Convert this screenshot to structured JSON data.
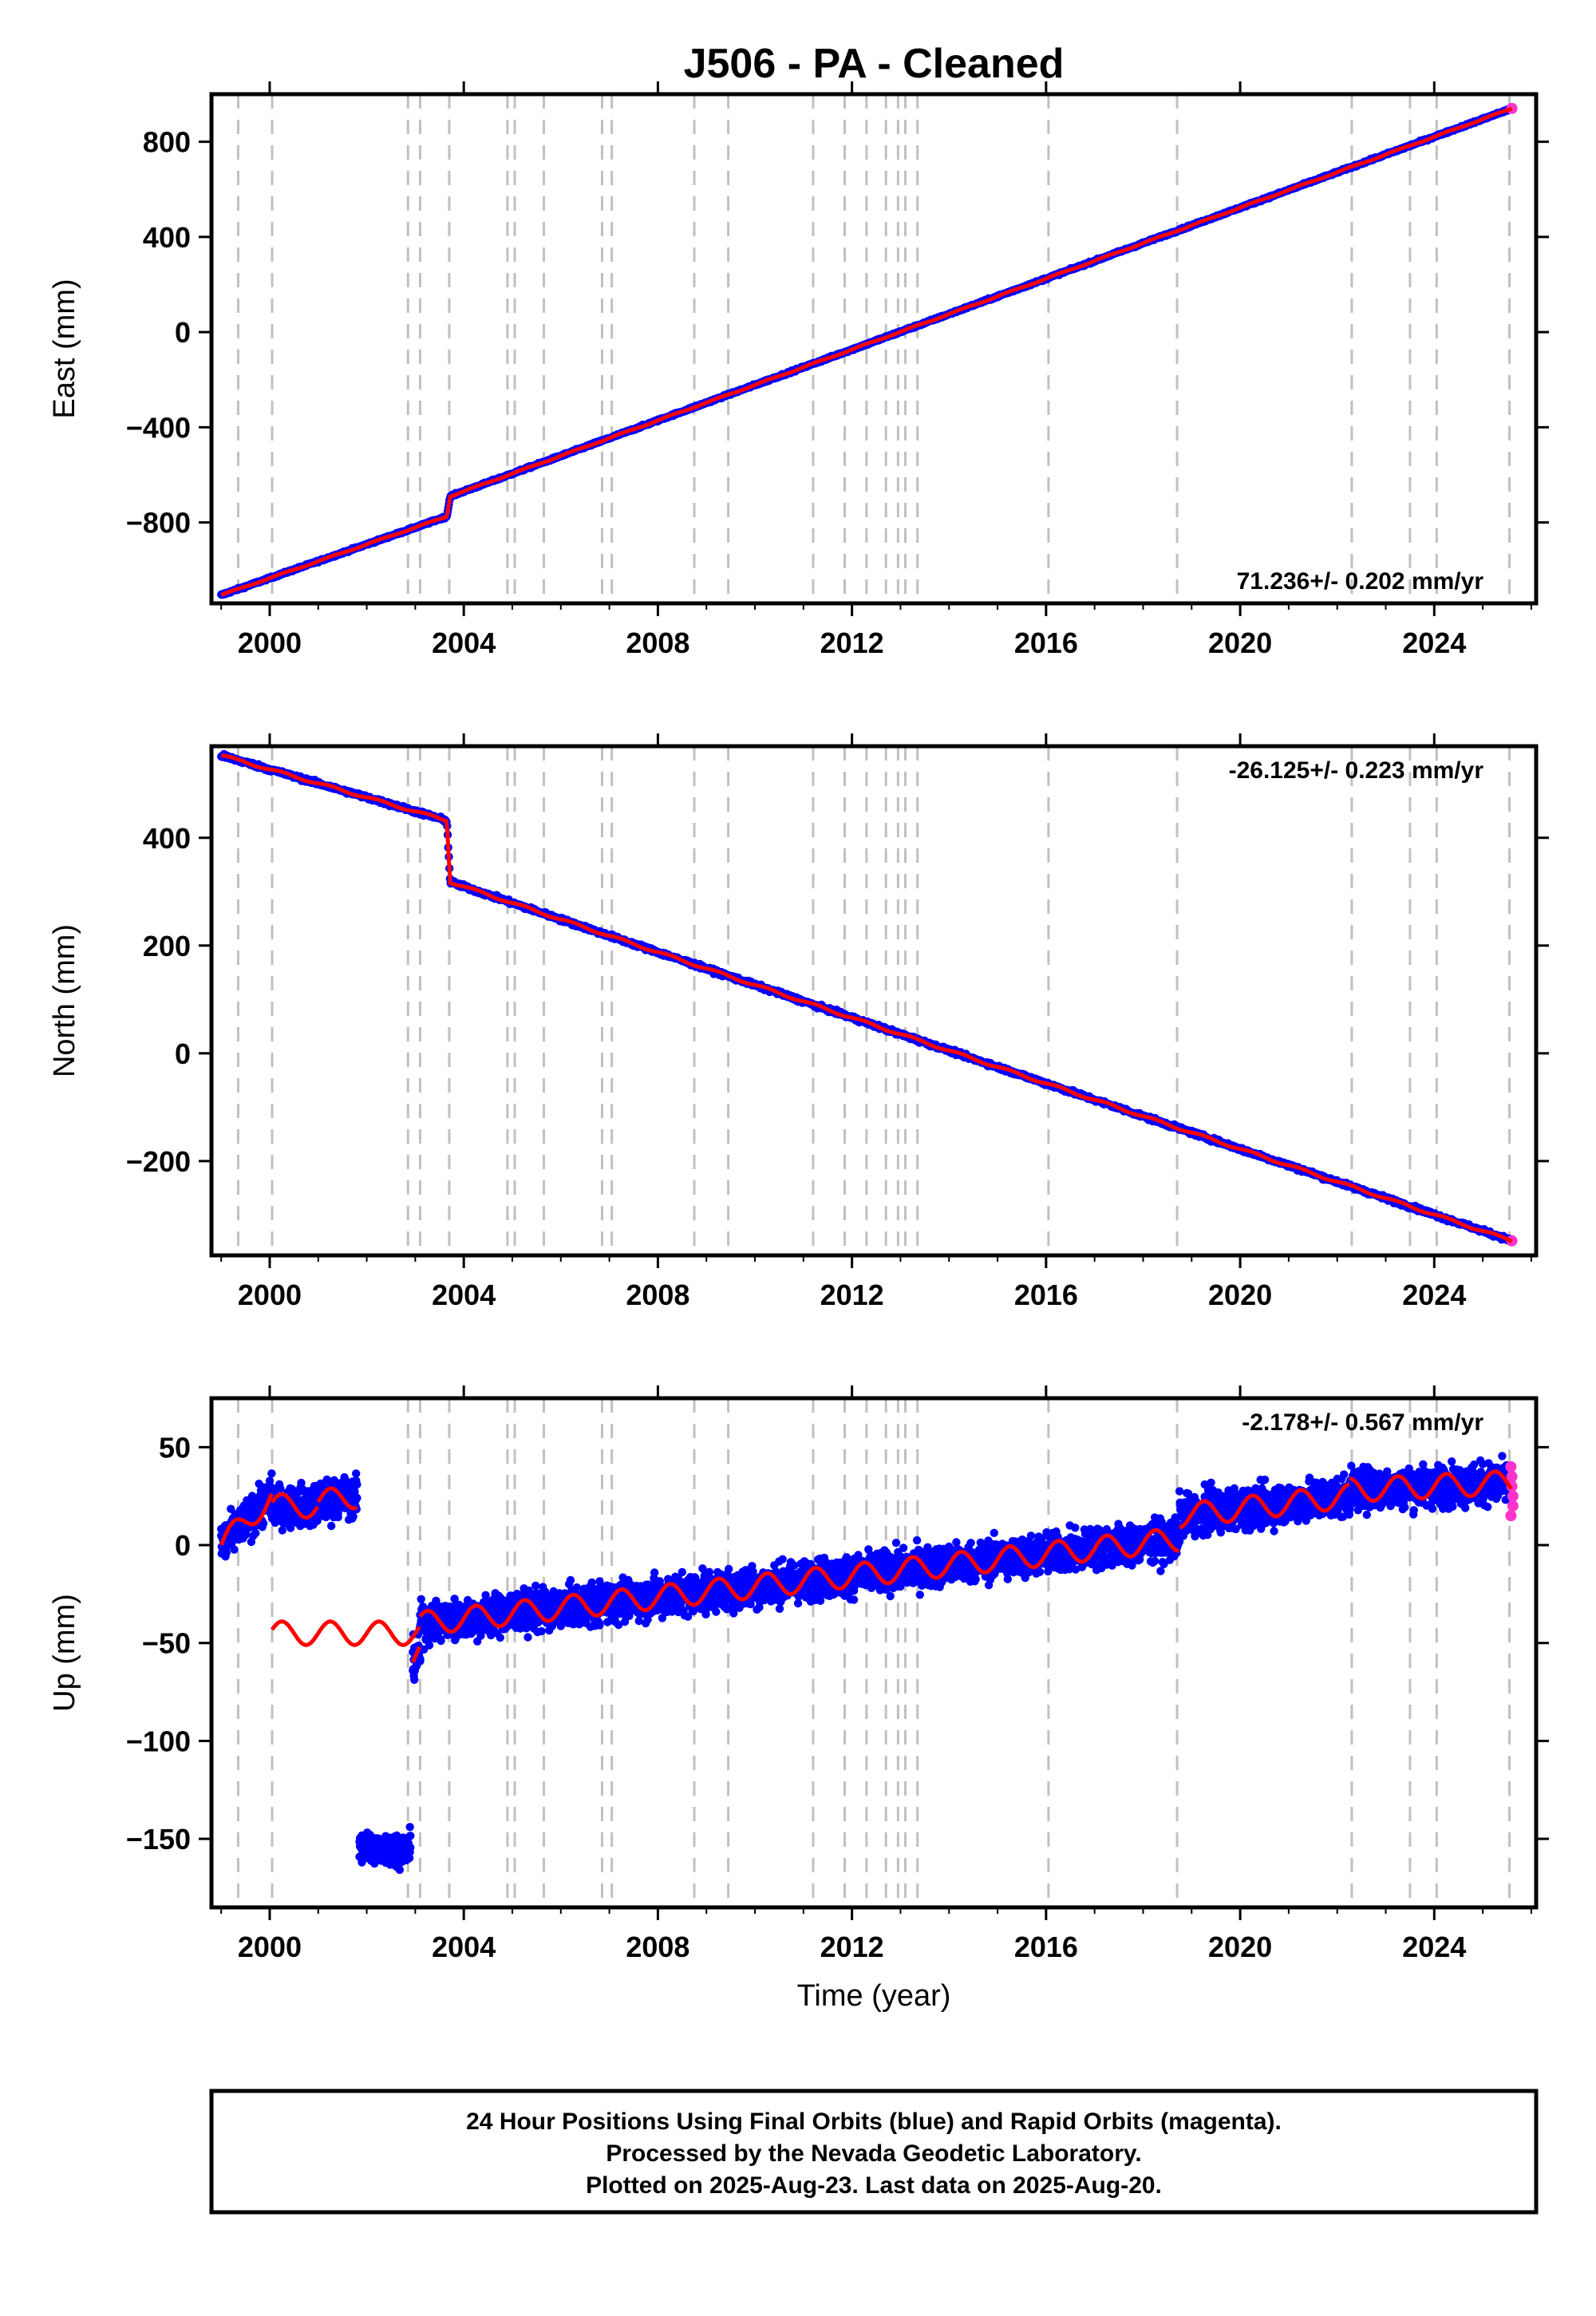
{
  "title": "J506  - PA - Cleaned",
  "colors": {
    "final_orbits": "#0000ff",
    "rapid_orbits": "#ff33cc",
    "model": "#ff0000",
    "event_lines": "#c0c0c0"
  },
  "chart_data": [
    {
      "type": "scatter",
      "panel": "east",
      "ylabel": "East (mm)",
      "xlim": [
        1998.8,
        2026.1
      ],
      "ylim": [
        -1140,
        1000
      ],
      "yticks": [
        -800,
        -400,
        0,
        400,
        800
      ],
      "xticks": [
        2000,
        2004,
        2008,
        2012,
        2016,
        2020,
        2024
      ],
      "rate": "71.236+/- 0.202 mm/yr",
      "rate_position": "bottom-right",
      "series": [
        {
          "x": [
            1999.0,
            2003.65,
            2003.72,
            2025.6
          ],
          "y": [
            -1105,
            -775,
            -690,
            940
          ]
        }
      ]
    },
    {
      "type": "scatter",
      "panel": "north",
      "ylabel": "North (mm)",
      "xlim": [
        1998.8,
        2026.1
      ],
      "ylim": [
        -375,
        570
      ],
      "yticks": [
        -200,
        0,
        200,
        400
      ],
      "xticks": [
        2000,
        2004,
        2008,
        2012,
        2016,
        2020,
        2024
      ],
      "rate": "-26.125+/- 0.223 mm/yr",
      "rate_position": "top-right",
      "series": [
        {
          "x": [
            1999.0,
            2003.65,
            2003.72,
            2025.6
          ],
          "y": [
            553,
            432,
            318,
            -348
          ]
        }
      ]
    },
    {
      "type": "scatter",
      "panel": "up",
      "ylabel": "Up (mm)",
      "xlabel": "Time (year)",
      "xlim": [
        1998.8,
        2026.1
      ],
      "ylim": [
        -185,
        75
      ],
      "yticks": [
        -150,
        -100,
        -50,
        0,
        50
      ],
      "xticks": [
        2000,
        2004,
        2008,
        2012,
        2016,
        2020,
        2024
      ],
      "rate": "-2.178+/- 0.567 mm/yr",
      "rate_position": "top-right",
      "segments": [
        {
          "x0": 1999.0,
          "x1": 2000.05,
          "y0": 0,
          "y1": 25
        },
        {
          "x0": 2000.05,
          "x1": 2001.0,
          "y0": 20,
          "y1": 20
        },
        {
          "x0": 2001.0,
          "x1": 2001.8,
          "y0": 22,
          "y1": 25
        },
        {
          "x0": 2001.85,
          "x1": 2002.9,
          "y0": -155,
          "y1": -155
        },
        {
          "x0": 2002.95,
          "x1": 2003.1,
          "y0": -58,
          "y1": -55
        },
        {
          "x0": 2003.1,
          "x1": 2018.75,
          "y0": -40,
          "y1": 3
        },
        {
          "x0": 2018.75,
          "x1": 2022.25,
          "y0": 15,
          "y1": 25
        },
        {
          "x0": 2022.25,
          "x1": 2025.6,
          "y0": 28,
          "y1": 32
        }
      ],
      "rapid_points": [
        {
          "x": 2025.58,
          "y": 40
        },
        {
          "x": 2025.6,
          "y": 35
        },
        {
          "x": 2025.6,
          "y": 30
        },
        {
          "x": 2025.62,
          "y": 25
        },
        {
          "x": 2025.62,
          "y": 20
        },
        {
          "x": 2025.58,
          "y": 15
        }
      ]
    }
  ],
  "event_lines_years": [
    1999.35,
    2000.05,
    2002.85,
    2003.1,
    2003.7,
    2004.9,
    2005.05,
    2005.65,
    2006.85,
    2007.05,
    2008.75,
    2009.45,
    2011.2,
    2011.85,
    2012.3,
    2012.7,
    2012.95,
    2013.1,
    2013.35,
    2016.05,
    2018.7,
    2022.3,
    2023.5,
    2024.05,
    2025.55
  ],
  "footer": {
    "line1": "24 Hour Positions Using Final Orbits (blue) and Rapid Orbits (magenta).",
    "line2": "Processed by the Nevada Geodetic Laboratory.",
    "line3": "Plotted on 2025-Aug-23. Last data on 2025-Aug-20."
  }
}
